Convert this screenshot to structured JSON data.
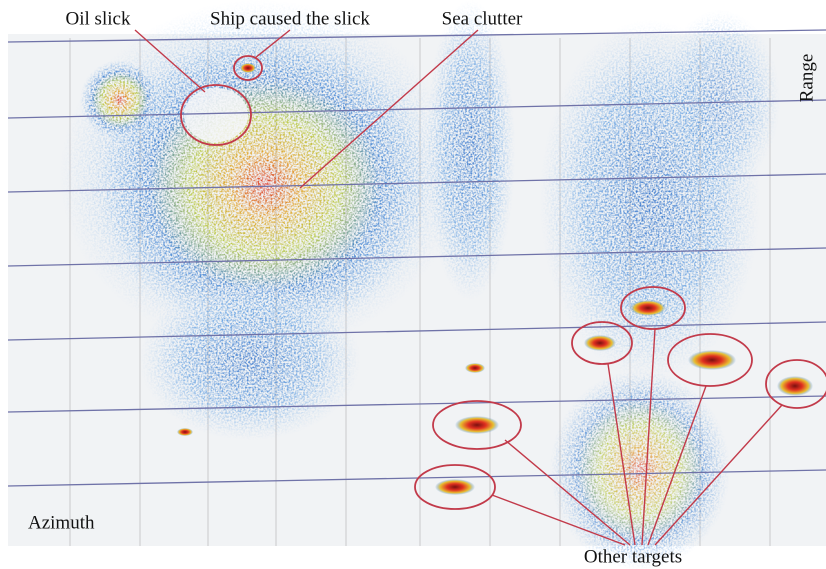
{
  "labels": {
    "oil_slick": "Oil slick",
    "ship": "Ship caused the slick",
    "sea_clutter": "Sea clutter",
    "other_targets": "Other targets",
    "azimuth": "Azimuth",
    "range": "Range"
  }
}
